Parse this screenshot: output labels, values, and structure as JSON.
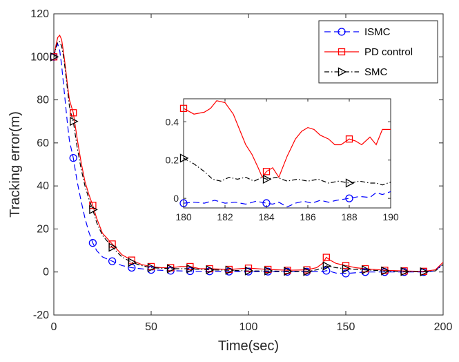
{
  "chart_data": [
    {
      "type": "line",
      "xlabel": "Time(sec)",
      "ylabel": "Tracking error(m)",
      "xlim": [
        0,
        200
      ],
      "ylim": [
        -20,
        120
      ],
      "xticks": [
        0,
        50,
        100,
        150,
        200
      ],
      "yticks": [
        -20,
        0,
        20,
        40,
        60,
        80,
        100,
        120
      ],
      "xtick_labels": [
        "0",
        "50",
        "100",
        "150",
        "200"
      ],
      "ytick_labels": [
        "-20",
        "0",
        "20",
        "40",
        "60",
        "80",
        "100",
        "120"
      ],
      "legend": {
        "placement": "top-right",
        "entries": [
          "ISMC",
          "PD control",
          "SMC"
        ]
      },
      "series": [
        {
          "name": "ISMC",
          "color": "#0000ff",
          "dash": "dashed",
          "marker": "circle",
          "x": [
            0,
            1,
            2,
            3,
            4,
            5,
            6,
            7,
            8,
            9,
            10,
            12,
            14,
            16,
            18,
            20,
            22,
            25,
            30,
            35,
            40,
            50,
            60,
            70,
            80,
            90,
            100,
            110,
            120,
            130,
            138,
            140,
            142,
            145,
            150,
            160,
            170,
            180,
            190,
            196,
            200
          ],
          "y": [
            100,
            104,
            106,
            103,
            96,
            87,
            78,
            69,
            61,
            57,
            53,
            42,
            33,
            25,
            18.5,
            13.5,
            10,
            7,
            5,
            3,
            2,
            1,
            0.6,
            0.4,
            0.3,
            0.2,
            0.2,
            0.2,
            0.1,
            0.1,
            0.1,
            0.6,
            0.3,
            -0.5,
            -0.7,
            0,
            0,
            0,
            0,
            0.5,
            4
          ],
          "marker_x": [
            0,
            10,
            20,
            30,
            40,
            50,
            60,
            70,
            80,
            90,
            100,
            110,
            120,
            130,
            140,
            150,
            160,
            170,
            180,
            190
          ],
          "marker_y": [
            100,
            53,
            13.5,
            5,
            2,
            1,
            0.6,
            0.4,
            0.3,
            0.2,
            0.2,
            0.2,
            0.1,
            0.1,
            0.6,
            -0.7,
            0,
            0,
            0,
            0
          ]
        },
        {
          "name": "PD control",
          "color": "#ff0000",
          "dash": "solid",
          "marker": "square",
          "x": [
            0,
            1,
            2,
            3,
            4,
            5,
            6,
            7,
            8,
            9,
            10,
            12,
            14,
            16,
            18,
            20,
            22,
            25,
            30,
            35,
            40,
            45,
            50,
            55,
            60,
            65,
            70,
            75,
            80,
            90,
            100,
            110,
            120,
            130,
            135,
            138,
            140,
            142,
            145,
            150,
            155,
            160,
            170,
            180,
            190,
            196,
            200
          ],
          "y": [
            100,
            105,
            109,
            110,
            108,
            102,
            95,
            87,
            80,
            77,
            74,
            62,
            51,
            42,
            36,
            31,
            25,
            18,
            13,
            8,
            5.5,
            3.5,
            2.5,
            2,
            2,
            2.5,
            2.5,
            1.5,
            1.5,
            1.2,
            1.8,
            1.2,
            0.8,
            1,
            2,
            4,
            6.8,
            5.5,
            4,
            3,
            2,
            1.5,
            0.8,
            0.5,
            0.3,
            1,
            4.5
          ],
          "marker_x": [
            0,
            10,
            20,
            30,
            40,
            50,
            60,
            70,
            80,
            90,
            100,
            110,
            120,
            130,
            140,
            150,
            160,
            170,
            180,
            190
          ],
          "marker_y": [
            100,
            74,
            31,
            13,
            5.5,
            2.5,
            2,
            2.5,
            1.5,
            1.2,
            1.8,
            1.2,
            0.8,
            1,
            6.8,
            3,
            1.5,
            0.8,
            0.5,
            0.3
          ]
        },
        {
          "name": "SMC",
          "color": "#000000",
          "dash": "dashdot",
          "marker": "triangle-right",
          "x": [
            0,
            1,
            2,
            3,
            4,
            5,
            6,
            7,
            8,
            9,
            10,
            12,
            14,
            16,
            18,
            20,
            22,
            25,
            30,
            35,
            40,
            45,
            50,
            60,
            70,
            80,
            90,
            100,
            110,
            120,
            130,
            135,
            138,
            140,
            142,
            145,
            150,
            160,
            170,
            180,
            190,
            196,
            200
          ],
          "y": [
            100,
            104,
            107,
            107,
            105,
            100,
            93,
            85,
            77,
            73,
            70,
            58,
            48,
            40,
            34,
            29,
            23,
            17,
            11.5,
            7,
            4.5,
            3,
            2,
            1.5,
            1.5,
            1,
            0.8,
            0.5,
            0.5,
            0.3,
            0.2,
            1,
            2,
            2.8,
            2.5,
            2,
            1.5,
            1,
            0.5,
            0.2,
            0.1,
            0.5,
            3.5
          ],
          "marker_x": [
            0,
            10,
            20,
            30,
            40,
            50,
            60,
            70,
            80,
            90,
            100,
            110,
            120,
            130,
            140,
            150,
            160,
            170,
            180,
            190
          ],
          "marker_y": [
            100,
            70,
            29,
            11.5,
            4.5,
            2,
            1.5,
            1.5,
            1,
            0.8,
            0.5,
            0.5,
            0.3,
            0.2,
            2.8,
            1.5,
            1,
            0.5,
            0.2,
            0.1
          ]
        }
      ]
    },
    {
      "type": "line",
      "title": "",
      "xlim": [
        180,
        190
      ],
      "ylim": [
        -0.05,
        0.52
      ],
      "xticks": [
        180,
        182,
        184,
        186,
        188,
        190
      ],
      "yticks": [
        0,
        0.2,
        0.4
      ],
      "xtick_labels": [
        "180",
        "182",
        "184",
        "186",
        "188",
        "190"
      ],
      "ytick_labels": [
        "0",
        "0.2",
        "0.4"
      ],
      "series": [
        {
          "name": "ISMC",
          "color": "#0000ff",
          "dash": "dashed",
          "marker": "circle",
          "x": [
            180,
            180.5,
            181,
            181.5,
            182,
            182.5,
            183,
            183.5,
            184,
            184.3,
            184.6,
            185,
            185.4,
            185.8,
            186.2,
            186.6,
            187,
            187.4,
            188,
            188.5,
            189,
            189.3,
            189.6,
            190
          ],
          "y": [
            -0.025,
            -0.02,
            -0.025,
            -0.01,
            -0.025,
            -0.02,
            -0.03,
            -0.015,
            -0.025,
            -0.03,
            -0.02,
            -0.045,
            -0.025,
            -0.015,
            -0.025,
            -0.01,
            -0.02,
            -0.01,
            0,
            0.01,
            0.005,
            0.03,
            0.02,
            0.035
          ],
          "marker_x": [
            180,
            184,
            188
          ],
          "marker_y": [
            -0.025,
            -0.025,
            0
          ]
        },
        {
          "name": "PD control",
          "color": "#ff0000",
          "dash": "solid",
          "marker": "square",
          "x": [
            180,
            180.5,
            181,
            181.3,
            181.6,
            182,
            182.4,
            182.7,
            183,
            183.3,
            183.6,
            183.8,
            184,
            184.3,
            184.6,
            185,
            185.4,
            185.7,
            186,
            186.3,
            186.6,
            187,
            187.3,
            187.6,
            188,
            188.3,
            188.6,
            189,
            189.3,
            189.6,
            190
          ],
          "y": [
            0.47,
            0.44,
            0.45,
            0.47,
            0.51,
            0.5,
            0.44,
            0.36,
            0.28,
            0.23,
            0.16,
            0.11,
            0.14,
            0.16,
            0.11,
            0.22,
            0.31,
            0.35,
            0.37,
            0.36,
            0.33,
            0.31,
            0.28,
            0.28,
            0.31,
            0.3,
            0.28,
            0.32,
            0.28,
            0.36,
            0.36
          ],
          "marker_x": [
            180,
            184,
            188
          ],
          "marker_y": [
            0.47,
            0.14,
            0.31
          ]
        },
        {
          "name": "SMC",
          "color": "#000000",
          "dash": "dashdot",
          "marker": "triangle-right",
          "x": [
            180,
            180.5,
            181,
            181.4,
            181.8,
            182.2,
            182.6,
            183,
            183.4,
            183.8,
            184,
            184.5,
            185,
            185.5,
            186,
            186.5,
            187,
            187.5,
            188,
            188.5,
            189,
            189.3,
            189.6,
            190
          ],
          "y": [
            0.21,
            0.18,
            0.14,
            0.1,
            0.09,
            0.11,
            0.1,
            0.11,
            0.09,
            0.11,
            0.1,
            0.11,
            0.09,
            0.1,
            0.09,
            0.1,
            0.08,
            0.09,
            0.08,
            0.09,
            0.08,
            0.08,
            0.07,
            0.085
          ],
          "marker_x": [
            180,
            184,
            188
          ],
          "marker_y": [
            0.21,
            0.1,
            0.08
          ]
        }
      ]
    }
  ]
}
